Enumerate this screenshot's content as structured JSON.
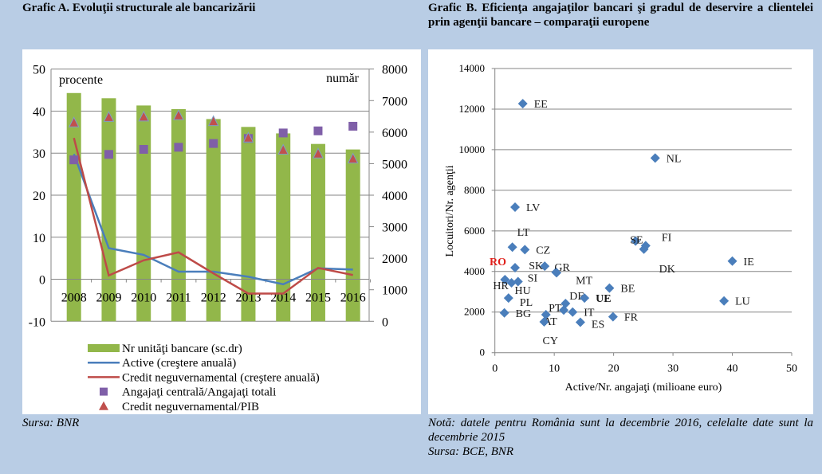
{
  "titles": {
    "a": "Grafic A. Evoluţii structurale ale bancarizării",
    "b": "Grafic B. Eficienţa angajaţilor bancari şi gradul de deservire a clientelei prin agenţii bancare – comparaţii europene"
  },
  "notes": {
    "a_source": "Sursa: BNR",
    "b_note": "Notă: datele pentru România sunt la decembrie 2016, celelalte date sunt la decembrie 2015",
    "b_source": "Sursa: BCE, BNR"
  },
  "colors": {
    "bars": "#92b74a",
    "active": "#4a7ebb",
    "credit": "#be4b48",
    "squares": "#7f5fa8",
    "triangles": "#c0504d",
    "diamonds": "#4a7ebb",
    "ro": "#e0201b",
    "background": "#b9cde5"
  },
  "chart_data": [
    {
      "type": "bar+line+scatter",
      "title": "Grafic A. Evoluţii structurale ale bancarizării",
      "left_label": "procente",
      "right_label": "număr",
      "ylim": [
        -10,
        50
      ],
      "yticks": [
        "-10",
        "0",
        "10",
        "20",
        "30",
        "40",
        "50"
      ],
      "y2lim": [
        0,
        8000
      ],
      "y2ticks": [
        "0",
        "1000",
        "2000",
        "3000",
        "4000",
        "5000",
        "6000",
        "7000",
        "8000"
      ],
      "categories": [
        "2008",
        "2009",
        "2010",
        "2011",
        "2012",
        "2013",
        "2014",
        "2015",
        "2016"
      ],
      "series": [
        {
          "name": "Nr unităţi bancare (sc.dr)",
          "kind": "bar",
          "axis": "right",
          "values": [
            7240,
            7075,
            6845,
            6730,
            6415,
            6165,
            5960,
            5625,
            5450
          ]
        },
        {
          "name": "Active (creştere anuală)",
          "kind": "line",
          "axis": "left",
          "values": [
            29.8,
            7.4,
            5.8,
            1.8,
            1.8,
            0.6,
            -1.2,
            2.6,
            2.3
          ]
        },
        {
          "name": "Credit neguvernamental (creştere anuală)",
          "kind": "line",
          "axis": "left",
          "values": [
            33.6,
            0.9,
            4.5,
            6.4,
            1.4,
            -3.4,
            -3.4,
            2.7,
            1.0
          ]
        },
        {
          "name": "Angajaţi centrală/Angajaţi totali",
          "kind": "square",
          "axis": "left",
          "values": [
            28.4,
            29.7,
            30.9,
            31.4,
            32.3,
            33.5,
            34.8,
            35.3,
            36.4
          ]
        },
        {
          "name": "Credit neguvernamental/PIB",
          "kind": "triangle",
          "axis": "left",
          "values": [
            37.2,
            38.5,
            38.6,
            38.9,
            37.5,
            33.6,
            30.7,
            29.8,
            28.6
          ]
        }
      ],
      "grid": true,
      "legend": "bottom"
    },
    {
      "type": "scatter",
      "title": "Grafic B",
      "xlabel": "Active/Nr. angajaţi (milioane euro)",
      "ylabel": "Locuitori/Nr. agenţii",
      "xlim": [
        0,
        50
      ],
      "xticks": [
        "0",
        "10",
        "20",
        "30",
        "40",
        "50"
      ],
      "ylim": [
        0,
        14000
      ],
      "yticks": [
        "0",
        "2000",
        "4000",
        "6000",
        "8000",
        "10000",
        "12000",
        "14000"
      ],
      "grid": true,
      "points": [
        {
          "label": "EE",
          "x": 4.7,
          "y": 12270
        },
        {
          "label": "NL",
          "x": 27.0,
          "y": 9590
        },
        {
          "label": "LV",
          "x": 3.4,
          "y": 7170
        },
        {
          "label": "LT",
          "x": 2.95,
          "y": 5200
        },
        {
          "label": "CZ",
          "x": 5.05,
          "y": 5075
        },
        {
          "label": "SE",
          "x": 23.7,
          "y": 5500
        },
        {
          "label": "FI",
          "x": 25.4,
          "y": 5270
        },
        {
          "label": "DK",
          "x": 25.1,
          "y": 5100
        },
        {
          "label": "IE",
          "x": 40.0,
          "y": 4510
        },
        {
          "label": "RO",
          "x": 3.4,
          "y": 4190
        },
        {
          "label": "SK",
          "x": 8.4,
          "y": 4260
        },
        {
          "label": "GR",
          "x": 10.3,
          "y": 3960
        },
        {
          "label": "MT",
          "x": 10.4,
          "y": 3940
        },
        {
          "label": "HR",
          "x": 1.7,
          "y": 3600
        },
        {
          "label": "HU",
          "x": 2.8,
          "y": 3440
        },
        {
          "label": "SI",
          "x": 3.9,
          "y": 3500
        },
        {
          "label": "PL",
          "x": 2.3,
          "y": 2690
        },
        {
          "label": "BG",
          "x": 1.6,
          "y": 1960
        },
        {
          "label": "BE",
          "x": 19.3,
          "y": 3180
        },
        {
          "label": "DE",
          "x": 11.9,
          "y": 2420
        },
        {
          "label": "UE",
          "x": 15.1,
          "y": 2690
        },
        {
          "label": "PT",
          "x": 11.6,
          "y": 2100
        },
        {
          "label": "IT",
          "x": 13.1,
          "y": 2000
        },
        {
          "label": "ES",
          "x": 14.4,
          "y": 1500
        },
        {
          "label": "AT",
          "x": 8.6,
          "y": 1870
        },
        {
          "label": "CY",
          "x": 8.3,
          "y": 1520
        },
        {
          "label": "FR",
          "x": 19.9,
          "y": 1770
        },
        {
          "label": "LU",
          "x": 38.6,
          "y": 2550
        }
      ]
    }
  ]
}
